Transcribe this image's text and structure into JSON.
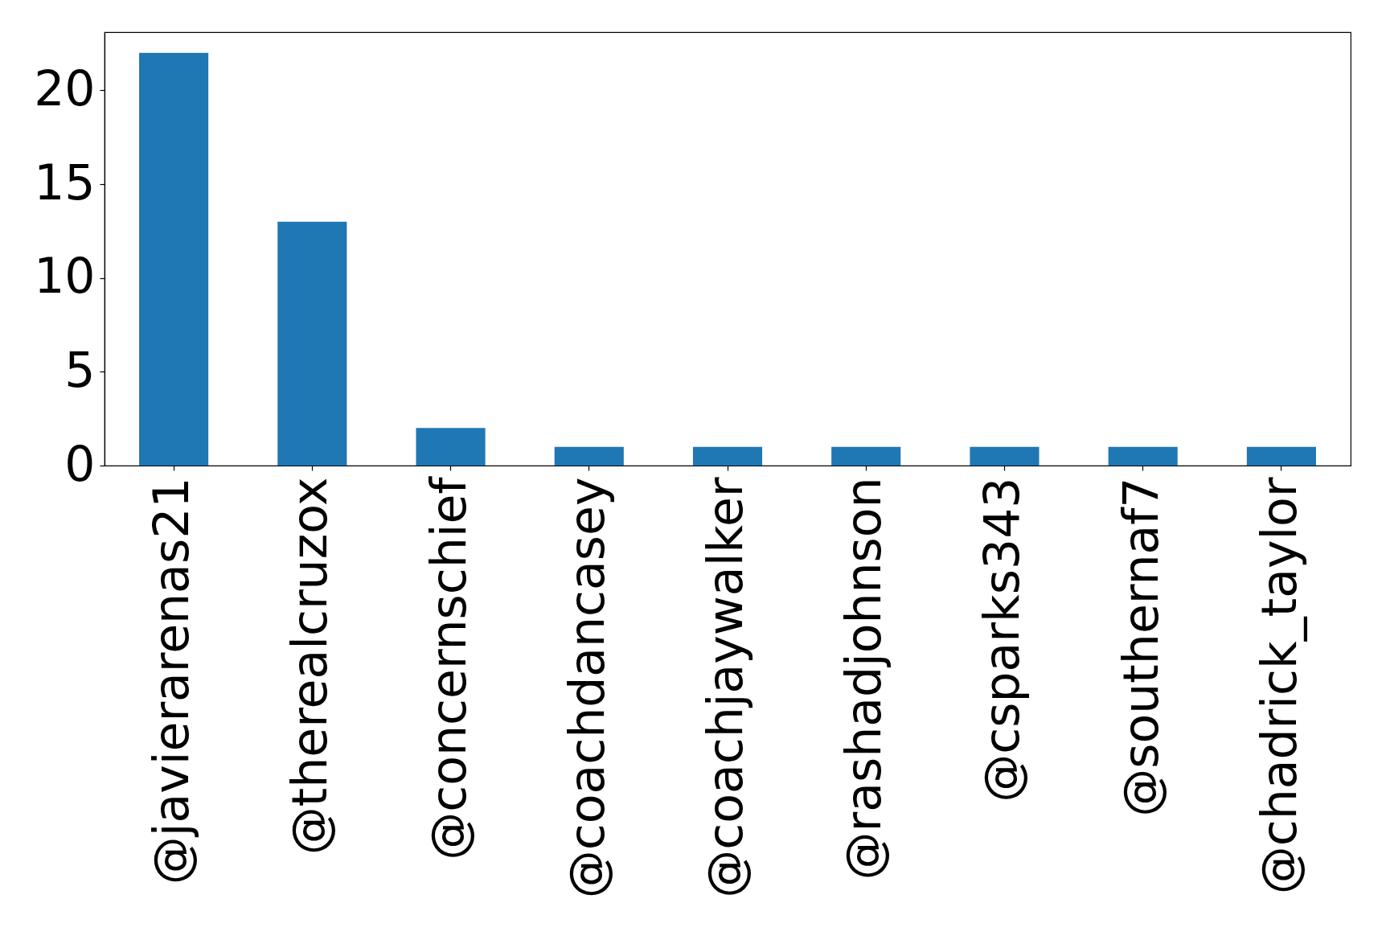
{
  "chart_data": {
    "type": "bar",
    "categories": [
      "@javierarenas21",
      "@therealcruzox",
      "@concernschief",
      "@coachdancasey",
      "@coachjaywalker",
      "@rashadjohnson",
      "@csparks343",
      "@southernaf7",
      "@chadrick_taylor"
    ],
    "values": [
      22,
      13,
      2,
      1,
      1,
      1,
      1,
      1,
      1
    ],
    "color": "#1f77b4",
    "ylim": [
      0,
      23.1
    ],
    "yticks": [
      0,
      5,
      10,
      15,
      20
    ],
    "grid": false
  }
}
